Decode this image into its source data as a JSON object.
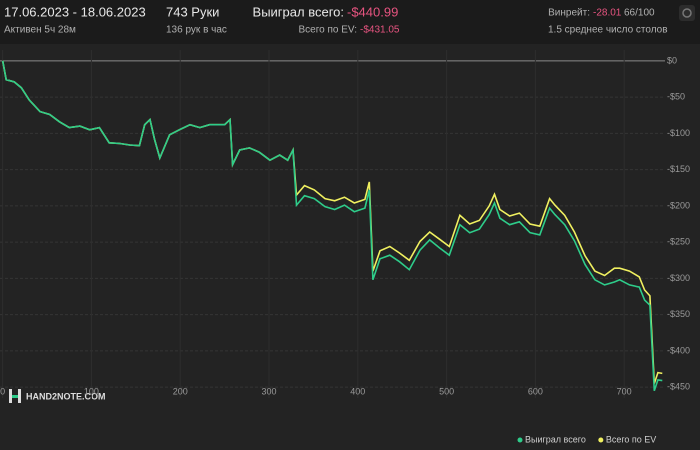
{
  "header": {
    "period": "17.06.2023 - 18.06.2023",
    "active": "Активен 5ч 28м",
    "hands": "743 Руки",
    "rate": "136 рук в час",
    "won_label": "Выиграл всего:",
    "won_value": "-$440.99",
    "ev_label": "Всего по EV:",
    "ev_value": "-$431.05",
    "winrate_label": "Винрейт:",
    "winrate_value": "-28.01",
    "winrate_unit": "66/100",
    "tables": "1.5 среднее число столов",
    "logo": "HAND2NOTE.COM"
  },
  "chart_data": {
    "type": "line",
    "x": [
      0,
      4,
      13,
      21,
      30,
      42,
      53,
      64,
      75,
      87,
      98,
      109,
      120,
      132,
      143,
      154,
      160,
      166,
      171,
      177,
      188,
      199,
      211,
      222,
      233,
      250,
      256,
      259,
      267,
      278,
      289,
      301,
      312,
      321,
      327,
      331,
      340,
      351,
      363,
      374,
      385,
      396,
      408,
      413,
      417,
      425,
      436,
      447,
      458,
      470,
      481,
      492,
      503,
      515,
      526,
      537,
      548,
      554,
      560,
      571,
      582,
      594,
      605,
      616,
      622,
      633,
      644,
      656,
      667,
      678,
      689,
      695,
      706,
      717,
      723,
      729,
      734,
      738,
      743
    ],
    "series": [
      {
        "name": "Выиграл всего",
        "color": "#2ecc8a",
        "values": [
          0,
          -26,
          -29,
          -37,
          -54,
          -70,
          -74,
          -84,
          -92,
          -90,
          -95,
          -92,
          -113,
          -114,
          -116,
          -117,
          -88,
          -81,
          -108,
          -134,
          -102,
          -95,
          -88,
          -92,
          -88,
          -88,
          -81,
          -143,
          -123,
          -120,
          -126,
          -137,
          -130,
          -137,
          -123,
          -199,
          -186,
          -190,
          -201,
          -205,
          -199,
          -208,
          -203,
          -178,
          -302,
          -273,
          -268,
          -277,
          -288,
          -261,
          -247,
          -258,
          -268,
          -226,
          -237,
          -232,
          -212,
          -196,
          -217,
          -226,
          -222,
          -237,
          -240,
          -203,
          -212,
          -226,
          -248,
          -281,
          -302,
          -309,
          -305,
          -302,
          -309,
          -312,
          -330,
          -337,
          -455,
          -440,
          -441
        ]
      },
      {
        "name": "Всего по EV",
        "color": "#f0f060",
        "values": [
          0,
          -26,
          -29,
          -37,
          -54,
          -70,
          -74,
          -84,
          -92,
          -90,
          -95,
          -92,
          -113,
          -114,
          -116,
          -117,
          -88,
          -81,
          -108,
          -134,
          -102,
          -95,
          -88,
          -92,
          -88,
          -88,
          -81,
          -143,
          -123,
          -120,
          -126,
          -137,
          -130,
          -137,
          -123,
          -185,
          -172,
          -178,
          -190,
          -193,
          -188,
          -196,
          -191,
          -167,
          -290,
          -262,
          -256,
          -265,
          -275,
          -249,
          -236,
          -246,
          -256,
          -213,
          -225,
          -220,
          -200,
          -184,
          -205,
          -214,
          -210,
          -225,
          -228,
          -190,
          -199,
          -213,
          -236,
          -269,
          -290,
          -296,
          -286,
          -286,
          -290,
          -298,
          -316,
          -324,
          -445,
          -430,
          -431
        ]
      }
    ],
    "xlim": [
      -3,
      746
    ],
    "ylim": [
      -465,
      15
    ],
    "xticks": [
      0,
      100,
      200,
      300,
      400,
      500,
      600,
      700
    ],
    "yticks": [
      {
        "value": 0,
        "label": "$0"
      },
      {
        "value": -50,
        "label": "-$50"
      },
      {
        "value": -100,
        "label": "-$100"
      },
      {
        "value": -150,
        "label": "-$150"
      },
      {
        "value": -200,
        "label": "-$200"
      },
      {
        "value": -250,
        "label": "-$250"
      },
      {
        "value": -300,
        "label": "-$300"
      },
      {
        "value": -350,
        "label": "-$350"
      },
      {
        "value": -400,
        "label": "-$400"
      },
      {
        "value": -450,
        "label": "-$450"
      }
    ],
    "grid": true
  }
}
